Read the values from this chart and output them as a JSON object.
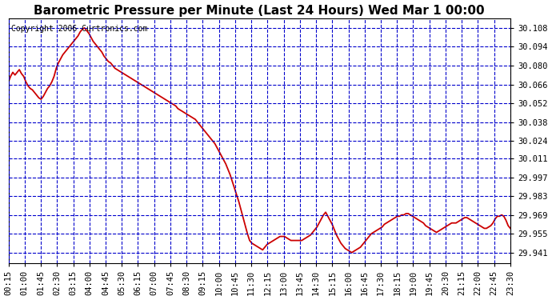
{
  "title": "Barometric Pressure per Minute (Last 24 Hours) Wed Mar 1 00:00",
  "copyright": "Copyright 2006 Curtronics.com",
  "yticks": [
    30.108,
    30.094,
    30.08,
    30.066,
    30.052,
    30.038,
    30.024,
    30.011,
    29.997,
    29.983,
    29.969,
    29.955,
    29.941
  ],
  "ylim": [
    29.933,
    30.115
  ],
  "xtick_labels": [
    "00:15",
    "01:00",
    "01:45",
    "02:30",
    "03:15",
    "04:00",
    "04:45",
    "05:30",
    "06:15",
    "07:00",
    "07:45",
    "08:30",
    "09:15",
    "10:00",
    "10:45",
    "11:30",
    "12:15",
    "13:00",
    "13:45",
    "14:30",
    "15:15",
    "16:00",
    "16:45",
    "17:30",
    "18:15",
    "19:00",
    "19:45",
    "20:30",
    "21:15",
    "22:00",
    "22:45",
    "23:30"
  ],
  "bg_color": "#ffffff",
  "plot_bg_color": "#ffffff",
  "line_color": "#cc0000",
  "title_color": "#000000",
  "grid_color": "#0000cc",
  "title_fontsize": 11,
  "copyright_fontsize": 7,
  "tick_fontsize": 7.5,
  "line_width": 1.3,
  "pressure_data": [
    30.068,
    30.072,
    30.075,
    30.073,
    30.075,
    30.077,
    30.074,
    30.072,
    30.068,
    30.065,
    30.063,
    30.062,
    30.06,
    30.058,
    30.056,
    30.055,
    30.057,
    30.06,
    30.063,
    30.065,
    30.068,
    30.072,
    30.078,
    30.082,
    30.085,
    30.088,
    30.09,
    30.092,
    30.094,
    30.096,
    30.098,
    30.1,
    30.102,
    30.105,
    30.107,
    30.108,
    30.106,
    30.104,
    30.101,
    30.098,
    30.096,
    30.094,
    30.092,
    30.09,
    30.087,
    30.085,
    30.083,
    30.082,
    30.08,
    30.078,
    30.077,
    30.076,
    30.075,
    30.074,
    30.073,
    30.072,
    30.071,
    30.07,
    30.069,
    30.068,
    30.067,
    30.066,
    30.065,
    30.064,
    30.063,
    30.062,
    30.061,
    30.06,
    30.059,
    30.058,
    30.057,
    30.056,
    30.055,
    30.054,
    30.053,
    30.052,
    30.051,
    30.05,
    30.048,
    30.047,
    30.046,
    30.045,
    30.044,
    30.043,
    30.042,
    30.041,
    30.04,
    30.038,
    30.036,
    30.034,
    30.032,
    30.03,
    30.028,
    30.026,
    30.024,
    30.022,
    30.019,
    30.016,
    30.013,
    30.01,
    30.007,
    30.003,
    29.999,
    29.994,
    29.989,
    29.984,
    29.979,
    29.973,
    29.967,
    29.961,
    29.955,
    29.95,
    29.948,
    29.947,
    29.946,
    29.945,
    29.944,
    29.943,
    29.945,
    29.947,
    29.948,
    29.949,
    29.95,
    29.951,
    29.952,
    29.953,
    29.953,
    29.953,
    29.952,
    29.951,
    29.95,
    29.95,
    29.95,
    29.95,
    29.95,
    29.95,
    29.951,
    29.952,
    29.953,
    29.954,
    29.956,
    29.958,
    29.96,
    29.963,
    29.966,
    29.969,
    29.971,
    29.968,
    29.965,
    29.962,
    29.958,
    29.954,
    29.951,
    29.948,
    29.946,
    29.944,
    29.943,
    29.942,
    29.941,
    29.942,
    29.943,
    29.944,
    29.945,
    29.947,
    29.949,
    29.951,
    29.953,
    29.955,
    29.956,
    29.957,
    29.958,
    29.959,
    29.96,
    29.962,
    29.963,
    29.964,
    29.965,
    29.966,
    29.967,
    29.968,
    29.968,
    29.969,
    29.969,
    29.97,
    29.97,
    29.969,
    29.968,
    29.967,
    29.966,
    29.965,
    29.964,
    29.963,
    29.961,
    29.96,
    29.959,
    29.958,
    29.957,
    29.956,
    29.957,
    29.958,
    29.959,
    29.96,
    29.961,
    29.962,
    29.963,
    29.963,
    29.963,
    29.964,
    29.965,
    29.966,
    29.967,
    29.967,
    29.966,
    29.965,
    29.964,
    29.963,
    29.962,
    29.961,
    29.96,
    29.959,
    29.959,
    29.96,
    29.961,
    29.963,
    29.966,
    29.968,
    29.968,
    29.969,
    29.968,
    29.965,
    29.961,
    29.959
  ]
}
